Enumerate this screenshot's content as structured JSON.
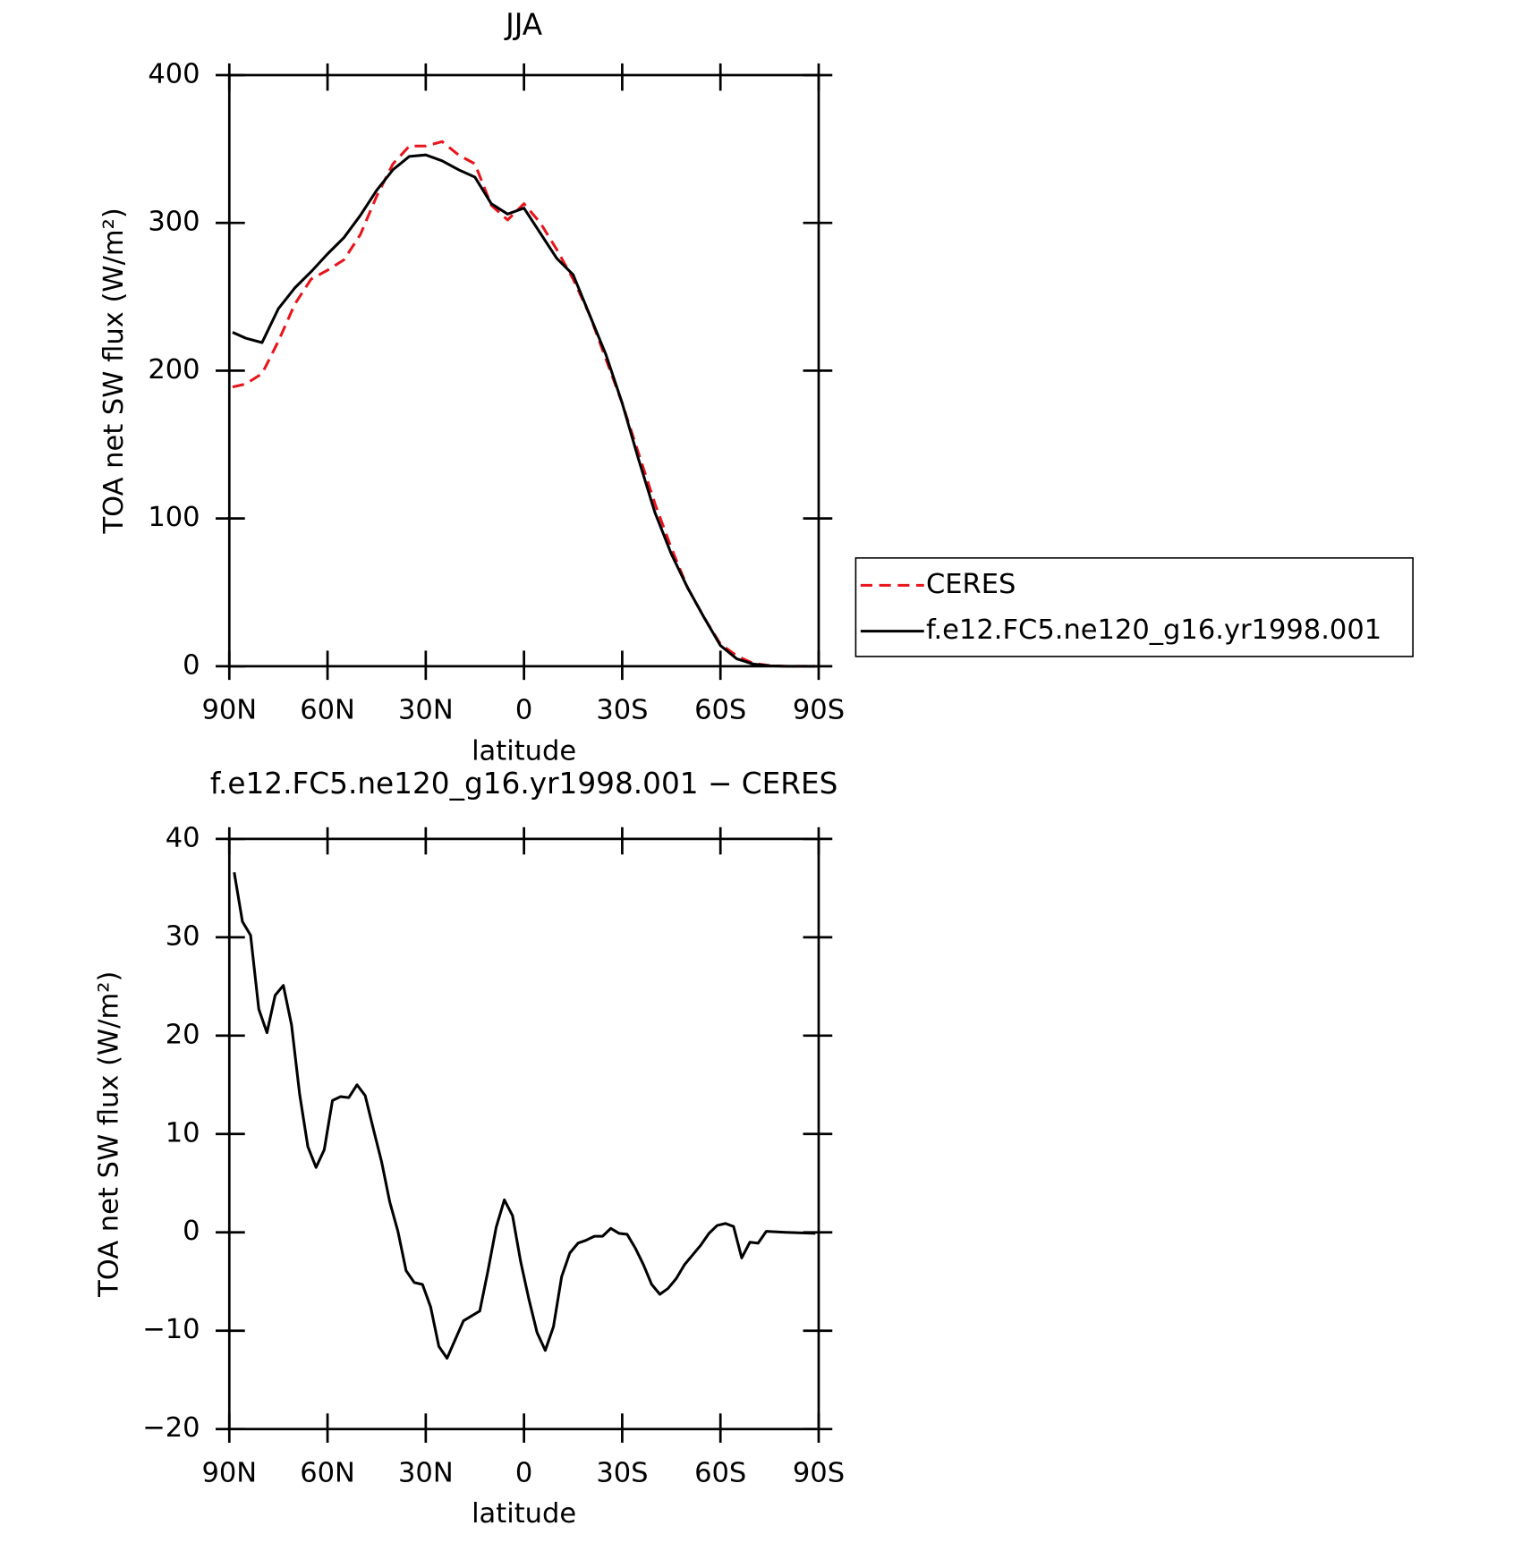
{
  "chart_data": [
    {
      "type": "line",
      "title": "JJA",
      "xlabel": "latitude",
      "ylabel": "TOA net SW flux (W/m²)",
      "x": [
        89,
        85,
        80,
        75,
        70,
        65,
        60,
        55,
        50,
        45,
        40,
        35,
        30,
        25,
        20,
        15,
        10,
        5,
        0,
        -5,
        -10,
        -15,
        -20,
        -25,
        -30,
        -35,
        -40,
        -45,
        -50,
        -55,
        -60,
        -65,
        -70,
        -75,
        -80,
        -85,
        -89
      ],
      "series": [
        {
          "name": "CERES",
          "color": "#e8141b",
          "dash": true,
          "values": [
            189,
            191,
            198,
            220,
            245,
            262,
            268,
            275,
            292,
            318,
            340,
            352,
            352,
            355,
            346,
            340,
            312,
            302,
            313,
            300,
            282,
            262,
            238,
            208,
            178,
            144,
            110,
            80,
            53,
            33,
            15,
            7,
            2,
            0.5,
            0,
            0,
            0
          ]
        },
        {
          "name": "f.e12.FC5.ne120_g16.yr1998.001",
          "color": "#000000",
          "dash": false,
          "values": [
            226,
            222,
            219,
            242,
            256,
            267,
            279,
            290,
            305,
            322,
            336,
            345,
            346,
            342,
            336,
            331,
            313,
            306,
            310,
            293,
            276,
            265,
            238,
            211,
            178,
            140,
            104,
            76,
            53,
            33,
            14,
            5,
            1.5,
            0.3,
            0,
            0,
            0
          ]
        }
      ],
      "xlim": [
        90,
        -90
      ],
      "xticks": [
        {
          "value": 90,
          "label": "90N"
        },
        {
          "value": 60,
          "label": "60N"
        },
        {
          "value": 30,
          "label": "30N"
        },
        0,
        {
          "value": -30,
          "label": "30S"
        },
        {
          "value": -60,
          "label": "60S"
        },
        {
          "value": -90,
          "label": "90S"
        }
      ],
      "ylim": [
        0,
        400
      ],
      "yticks": [
        0,
        100,
        200,
        300,
        400
      ],
      "legend": "right"
    },
    {
      "type": "line",
      "title": "f.e12.FC5.ne120_g16.yr1998.001 − CERES",
      "xlabel": "latitude",
      "ylabel": "TOA net SW flux (W/m²)",
      "x": [
        88.5,
        86,
        83.5,
        81,
        78.5,
        76,
        73.5,
        71,
        68.5,
        66,
        63.5,
        61,
        58.5,
        56,
        53.5,
        51,
        48.5,
        46,
        43.5,
        41,
        38.5,
        36,
        33.5,
        31,
        28.5,
        26,
        23.5,
        21,
        18.5,
        16,
        13.5,
        11,
        8.5,
        6,
        3.5,
        1,
        -1.5,
        -4,
        -6.5,
        -9,
        -11.5,
        -14,
        -16.5,
        -19,
        -21.5,
        -24,
        -26.5,
        -29,
        -31.5,
        -34,
        -36.5,
        -39,
        -41.5,
        -44,
        -46.5,
        -49,
        -51.5,
        -54,
        -56.5,
        -59,
        -61.5,
        -64,
        -66.5,
        -69,
        -71.5,
        -74,
        -80,
        -89
      ],
      "values": [
        36.6,
        31.6,
        30.2,
        22.7,
        20.3,
        24.1,
        25.1,
        21.1,
        14,
        8.7,
        6.6,
        8.4,
        13.4,
        13.8,
        13.7,
        15,
        13.9,
        10.5,
        7.2,
        3.1,
        0.1,
        -3.9,
        -5.1,
        -5.3,
        -7.6,
        -11.6,
        -12.8,
        -10.9,
        -9,
        -8.5,
        -8,
        -3.9,
        0.5,
        3.3,
        1.7,
        -3,
        -6.8,
        -10.2,
        -12,
        -9.6,
        -4.5,
        -2.1,
        -1.1,
        -0.8,
        -0.4,
        -0.4,
        0.4,
        -0.1,
        -0.2,
        -1.6,
        -3.3,
        -5.3,
        -6.3,
        -5.7,
        -4.7,
        -3.3,
        -2.3,
        -1.3,
        -0.1,
        0.7,
        0.9,
        0.6,
        -2.6,
        -1,
        -1.1,
        0.1,
        0,
        -0.1
      ],
      "color": "#000000",
      "xlim": [
        90,
        -90
      ],
      "xticks": [
        {
          "value": 90,
          "label": "90N"
        },
        {
          "value": 60,
          "label": "60N"
        },
        {
          "value": 30,
          "label": "30N"
        },
        0,
        {
          "value": -30,
          "label": "30S"
        },
        {
          "value": -60,
          "label": "60S"
        },
        {
          "value": -90,
          "label": "90S"
        }
      ],
      "ylim": [
        -20,
        40
      ],
      "yticks": [
        {
          "value": -20,
          "label": "−20"
        },
        {
          "value": -10,
          "label": "−10"
        },
        0,
        10,
        20,
        30,
        40
      ]
    }
  ]
}
